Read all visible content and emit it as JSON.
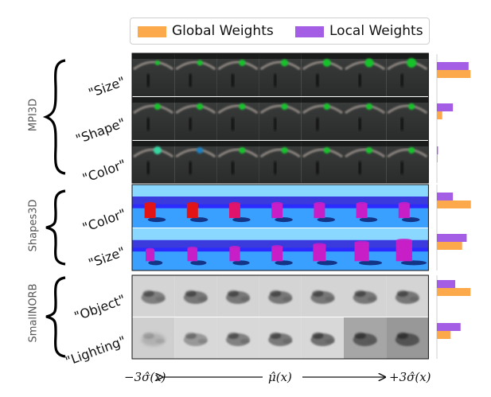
{
  "legend": {
    "global_label": "Global Weights",
    "local_label": "Local Weights"
  },
  "colors": {
    "global": "#fba94a",
    "local": "#a45ee5"
  },
  "axis": {
    "left_label": "−3σ̂(x)",
    "center_label": "μ̂(x)",
    "right_label": "+3σ̂(x)"
  },
  "chart_data": {
    "type": "bar",
    "orientation": "horizontal",
    "groups": [
      {
        "dataset": "MPI3D",
        "rows": [
          {
            "label": "\"Size\"",
            "local": 0.83,
            "global": 0.88
          },
          {
            "label": "\"Shape\"",
            "local": 0.42,
            "global": 0.14
          },
          {
            "label": "\"Color\"",
            "local": 0.03,
            "global": 0.02
          }
        ]
      },
      {
        "dataset": "Shapes3D",
        "rows": [
          {
            "label": "\"Color\"",
            "local": 0.42,
            "global": 0.89
          },
          {
            "label": "\"Size\"",
            "local": 0.78,
            "global": 0.66
          }
        ]
      },
      {
        "dataset": "SmallNORB",
        "rows": [
          {
            "label": "\"Object\"",
            "local": 0.48,
            "global": 0.88
          },
          {
            "label": "\"Lighting\"",
            "local": 0.62,
            "global": 0.36
          }
        ]
      }
    ]
  },
  "panels": [
    {
      "dataset": "MPI3D",
      "style": "mpi3d",
      "rows": [
        {
          "dx": [
            0,
            0,
            0,
            0,
            0,
            0,
            0
          ],
          "dy": [
            0,
            0,
            0,
            0,
            0,
            0,
            0
          ],
          "r": [
            3,
            3.5,
            4,
            4.5,
            5,
            5.5,
            6
          ],
          "col": [
            "#17c22a",
            "#17c22a",
            "#17c22a",
            "#17c22a",
            "#17c22a",
            "#17c22a",
            "#17c22a"
          ]
        },
        {
          "dx": [
            0,
            0,
            0,
            0,
            0,
            0,
            0
          ],
          "dy": [
            0,
            0,
            0,
            0,
            0,
            0,
            0
          ],
          "r": [
            4,
            4,
            4,
            4,
            4,
            4,
            4
          ],
          "col": [
            "#17c22a",
            "#17c22a",
            "#17c22a",
            "#17c22a",
            "#17c22a",
            "#17c22a",
            "#17c22a"
          ]
        },
        {
          "dx": [
            0,
            0,
            0,
            0,
            0,
            0,
            0
          ],
          "dy": [
            0,
            0,
            0,
            0,
            0,
            0,
            0
          ],
          "r": [
            5,
            4,
            4,
            4,
            4,
            4,
            4
          ],
          "col": [
            "#34d6a0",
            "#1a7fc0",
            "#17c22a",
            "#17c22a",
            "#17c22a",
            "#17c22a",
            "#17c22a"
          ]
        }
      ]
    },
    {
      "dataset": "Shapes3D",
      "style": "shapes3d",
      "rows": [
        {
          "s": [
            1,
            1,
            1,
            1,
            1,
            1,
            1
          ],
          "col": [
            "#e41414",
            "#e41414",
            "#e0146a",
            "#c81ec8",
            "#c81ec8",
            "#c81ec8",
            "#c81ec8"
          ]
        },
        {
          "s": [
            0.8,
            0.9,
            0.95,
            1,
            1.15,
            1.3,
            1.45
          ],
          "col": [
            "#c81ec8",
            "#c81ec8",
            "#c81ec8",
            "#c81ec8",
            "#c81ec8",
            "#c81ec8",
            "#c81ec8"
          ]
        }
      ]
    },
    {
      "dataset": "SmallNORB",
      "style": "norb",
      "rows": [
        {
          "bg": [
            "#d4d4d4",
            "#d4d4d4",
            "#d4d4d4",
            "#d4d4d4",
            "#d4d4d4",
            "#d4d4d4",
            "#d4d4d4"
          ],
          "ink": [
            0.55,
            0.6,
            0.6,
            0.6,
            0.6,
            0.6,
            0.6
          ]
        },
        {
          "bg": [
            "#cfcfcf",
            "#d8d8d8",
            "#d8d8d8",
            "#d8d8d8",
            "#d8d8d8",
            "#a6a6a6",
            "#989898"
          ],
          "ink": [
            0.2,
            0.4,
            0.55,
            0.6,
            0.65,
            0.7,
            0.75
          ]
        }
      ]
    }
  ]
}
